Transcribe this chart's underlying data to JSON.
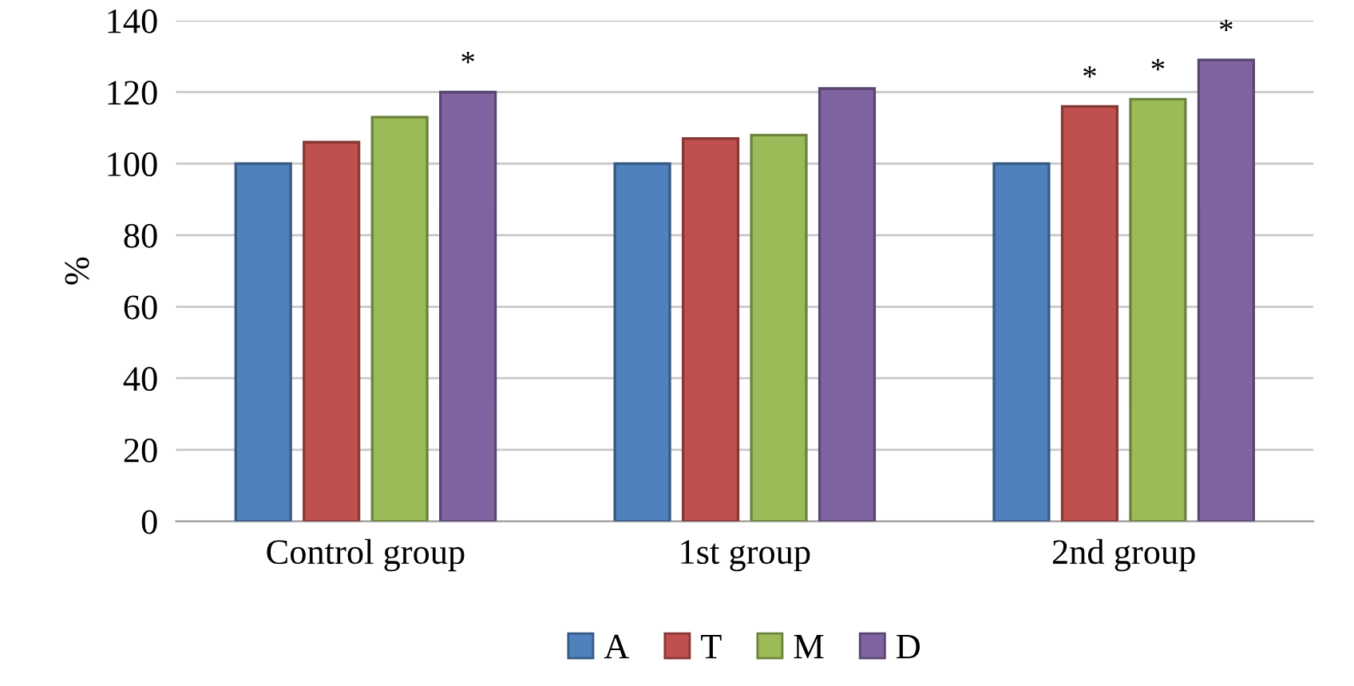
{
  "chart_data": {
    "type": "bar",
    "ylabel": "%",
    "categories": [
      "Control group",
      "1st group",
      "2nd group"
    ],
    "series": [
      {
        "name": "A",
        "color": "#4f81bd",
        "values": [
          100,
          100,
          100
        ]
      },
      {
        "name": "T",
        "color": "#c0504d",
        "values": [
          106,
          107,
          116
        ],
        "value_labels": [
          null,
          null,
          "*"
        ]
      },
      {
        "name": "M",
        "color": "#9bbb59",
        "values": [
          113,
          108,
          118
        ],
        "value_labels": [
          null,
          null,
          "*"
        ]
      },
      {
        "name": "D",
        "color": "#8064a2",
        "values": [
          120,
          121,
          129
        ],
        "value_labels": [
          "*",
          null,
          "*"
        ]
      }
    ],
    "ylim": [
      0,
      140
    ],
    "yticks": [
      0,
      20,
      40,
      60,
      80,
      100,
      120,
      140
    ],
    "grid": "y",
    "legend": "bottom"
  }
}
